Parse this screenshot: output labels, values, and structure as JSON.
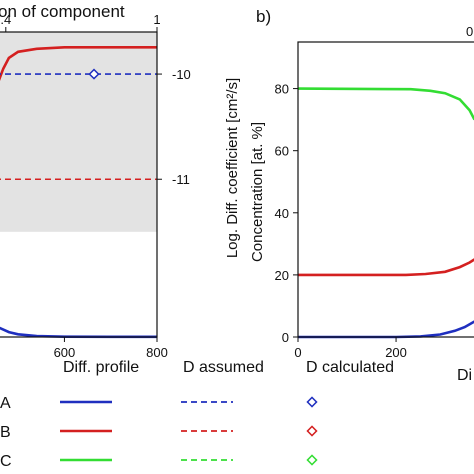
{
  "chart_data": [
    {
      "panel": "a",
      "type": "line",
      "top_axis": {
        "title_visible": "on of component",
        "ticks": [
          0.4,
          1
        ],
        "tick_labels": [
          ".4",
          "1"
        ]
      },
      "x_ticks": [
        600,
        800
      ],
      "xlim": [
        450,
        800
      ],
      "left_axis": {
        "ylim": [
          0,
          100
        ]
      },
      "right_axis": {
        "label": "Log. Diff. coefficient [cm²/s]",
        "ticks": [
          -10,
          -11
        ],
        "tick_labels": [
          "-10",
          "-11"
        ],
        "ylim": [
          -12.5,
          -9.6
        ]
      },
      "shaded_region": {
        "log_d_from": -11.5,
        "log_d_to": -9.6,
        "color": "#e3e3e3"
      },
      "series": [
        {
          "key": "A",
          "kind": "diff-profile",
          "color": "#1f2fbf",
          "points": [
            [
              450,
              4
            ],
            [
              460,
              3
            ],
            [
              480,
              1.6
            ],
            [
              500,
              0.9
            ],
            [
              540,
              0.3
            ],
            [
              600,
              0.1
            ],
            [
              700,
              0.05
            ],
            [
              800,
              0.05
            ]
          ]
        },
        {
          "key": "B",
          "kind": "diff-profile",
          "color": "#d42020",
          "points": [
            [
              450,
              80
            ],
            [
              458,
              84
            ],
            [
              468,
              88
            ],
            [
              480,
              91.5
            ],
            [
              500,
              93.5
            ],
            [
              540,
              94.5
            ],
            [
              600,
              95
            ],
            [
              800,
              95
            ]
          ]
        },
        {
          "key": "A",
          "kind": "d-assumed",
          "color": "#1f2fbf",
          "log_d": -10
        },
        {
          "key": "B",
          "kind": "d-assumed",
          "color": "#d42020",
          "log_d": -11
        },
        {
          "key": "A",
          "kind": "d-calculated",
          "color": "#1f2fbf",
          "points": [
            [
              0.75,
              -10
            ]
          ]
        }
      ]
    },
    {
      "panel": "b",
      "label": "b)",
      "type": "line",
      "top_right_label": "0",
      "ylabel": "Concentration [at. %]",
      "xlabel_visible": "Di",
      "x_ticks": [
        0,
        200
      ],
      "xlim": [
        0,
        360
      ],
      "y_ticks": [
        0,
        20,
        40,
        60,
        80
      ],
      "ylim": [
        0,
        95
      ],
      "series": [
        {
          "key": "A",
          "color": "#1f2fbf",
          "points": [
            [
              0,
              0
            ],
            [
              200,
              0
            ],
            [
              250,
              0.2
            ],
            [
              290,
              0.8
            ],
            [
              320,
              2
            ],
            [
              340,
              3.2
            ],
            [
              360,
              5
            ]
          ]
        },
        {
          "key": "B",
          "color": "#d42020",
          "points": [
            [
              0,
              20
            ],
            [
              220,
              20
            ],
            [
              260,
              20.3
            ],
            [
              300,
              21
            ],
            [
              330,
              22.5
            ],
            [
              350,
              24
            ],
            [
              360,
              25
            ]
          ]
        },
        {
          "key": "C",
          "color": "#33dd33",
          "points": [
            [
              0,
              80
            ],
            [
              230,
              79.8
            ],
            [
              270,
              79.3
            ],
            [
              300,
              78.5
            ],
            [
              330,
              76.5
            ],
            [
              350,
              73
            ],
            [
              360,
              70
            ]
          ]
        }
      ]
    }
  ],
  "legend": {
    "headers": [
      "Diff. profile",
      "D assumed",
      "D calculated"
    ],
    "rows": [
      {
        "key": "A",
        "color": "#1f2fbf"
      },
      {
        "key": "B",
        "color": "#d42020"
      },
      {
        "key": "C",
        "color": "#33dd33"
      }
    ]
  }
}
